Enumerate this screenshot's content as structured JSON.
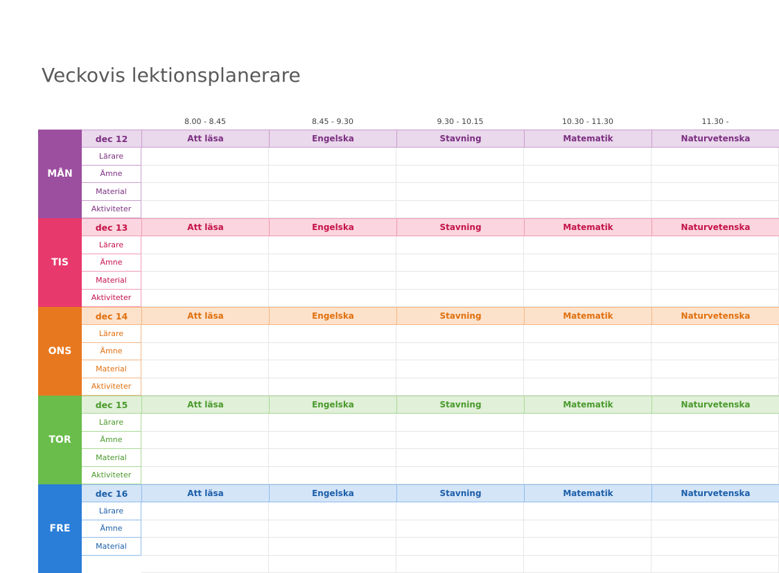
{
  "title": "Veckovis lektionsplanerare",
  "times": [
    "8.00 - 8.45",
    "8.45 - 9.30",
    "9.30 - 10.15",
    "10.30 - 11.30",
    "11.30 -"
  ],
  "days": [
    {
      "name": "MÅN",
      "date": "dec 12",
      "subjects": [
        "Att läsa",
        "Engelska",
        "Stavning",
        "Matematik",
        "Naturvetenska"
      ],
      "rows": [
        "Lärare",
        "Ämne",
        "Material",
        "Aktiviteter"
      ]
    },
    {
      "name": "TIS",
      "date": "dec 13",
      "subjects": [
        "Att läsa",
        "Engelska",
        "Stavning",
        "Matematik",
        "Naturvetenska"
      ],
      "rows": [
        "Lärare",
        "Ämne",
        "Material",
        "Aktiviteter"
      ]
    },
    {
      "name": "ONS",
      "date": "dec 14",
      "subjects": [
        "Att läsa",
        "Engelska",
        "Stavning",
        "Matematik",
        "Naturvetenska"
      ],
      "rows": [
        "Lärare",
        "Ämne",
        "Material",
        "Aktiviteter"
      ]
    },
    {
      "name": "TOR",
      "date": "dec 15",
      "subjects": [
        "Att läsa",
        "Engelska",
        "Stavning",
        "Matematik",
        "Naturvetenska"
      ],
      "rows": [
        "Lärare",
        "Ämne",
        "Material",
        "Aktiviteter"
      ]
    },
    {
      "name": "FRE",
      "date": "dec 16",
      "subjects": [
        "Att läsa",
        "Engelska",
        "Stavning",
        "Matematik",
        "Naturvetenska"
      ],
      "rows": [
        "Lärare",
        "Ämne",
        "Material"
      ]
    }
  ]
}
